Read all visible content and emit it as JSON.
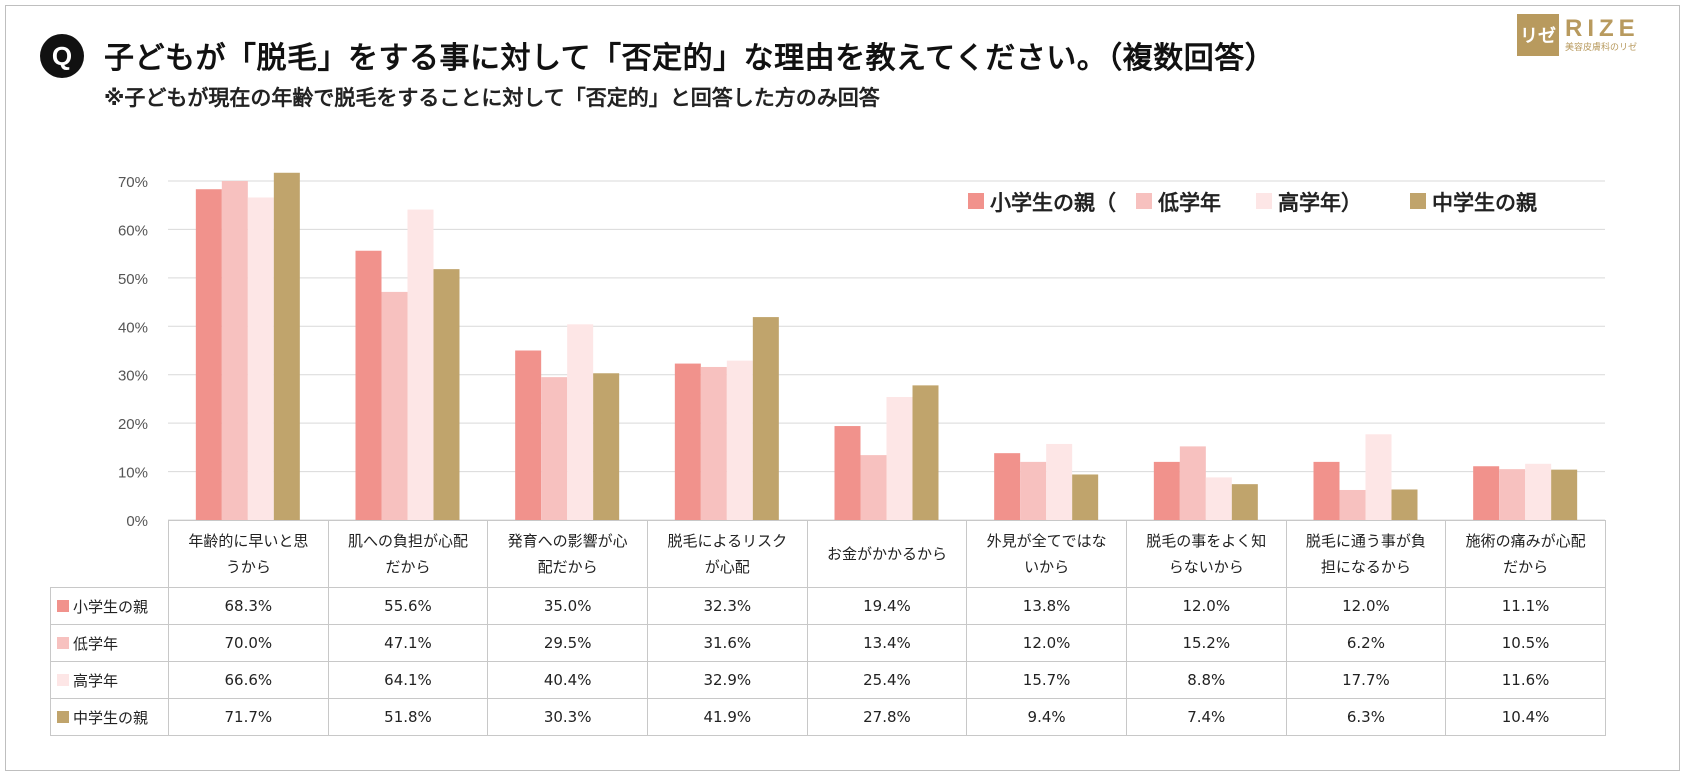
{
  "question_badge": "Q",
  "title": "子どもが「脱毛」をする事に対して「否定的」な理由を教えてください。（複数回答）",
  "subtitle": "※子どもが現在の年齢で脱毛をすることに対して「否定的」と回答した方のみ回答",
  "logo": {
    "mark": "リゼ",
    "name": "RIZE",
    "tagline": "美容皮膚科のリゼ"
  },
  "colors": {
    "s1": "#f1928c",
    "s2": "#f7c1bf",
    "s3": "#fde6e6",
    "s4": "#c0a46c",
    "grid": "#d9d9d9",
    "axis_text": "#555555"
  },
  "legend": {
    "s1": "小学生の親（",
    "s2": "低学年",
    "s3": "高学年）",
    "s4": "中学生の親"
  },
  "chart_data": {
    "type": "bar",
    "title": "子どもが「脱毛」をする事に対して「否定的」な理由を教えてください。（複数回答）",
    "ylabel": "",
    "xlabel": "",
    "ylim": [
      0,
      70
    ],
    "yticks": [
      "0%",
      "10%",
      "20%",
      "30%",
      "40%",
      "50%",
      "60%",
      "70%"
    ],
    "categories": [
      [
        "年齢的に早いと思",
        "うから"
      ],
      [
        "肌への負担が心配",
        "だから"
      ],
      [
        "発育への影響が心",
        "配だから"
      ],
      [
        "脱毛によるリスク",
        "が心配"
      ],
      [
        "お金がかかるから"
      ],
      [
        "外見が全てではな",
        "いから"
      ],
      [
        "脱毛の事をよく知",
        "らないから"
      ],
      [
        "脱毛に通う事が負",
        "担になるから"
      ],
      [
        "施術の痛みが心配",
        "だから"
      ]
    ],
    "series": [
      {
        "name": "小学生の親",
        "values": [
          68.3,
          55.6,
          35.0,
          32.3,
          19.4,
          13.8,
          12.0,
          12.0,
          11.1
        ],
        "labels": [
          "68.3%",
          "55.6%",
          "35.0%",
          "32.3%",
          "19.4%",
          "13.8%",
          "12.0%",
          "12.0%",
          "11.1%"
        ]
      },
      {
        "name": "低学年",
        "values": [
          70.0,
          47.1,
          29.5,
          31.6,
          13.4,
          12.0,
          15.2,
          6.2,
          10.5
        ],
        "labels": [
          "70.0%",
          "47.1%",
          "29.5%",
          "31.6%",
          "13.4%",
          "12.0%",
          "15.2%",
          "6.2%",
          "10.5%"
        ]
      },
      {
        "name": "高学年",
        "values": [
          66.6,
          64.1,
          40.4,
          32.9,
          25.4,
          15.7,
          8.8,
          17.7,
          11.6
        ],
        "labels": [
          "66.6%",
          "64.1%",
          "40.4%",
          "32.9%",
          "25.4%",
          "15.7%",
          "8.8%",
          "17.7%",
          "11.6%"
        ]
      },
      {
        "name": "中学生の親",
        "values": [
          71.7,
          51.8,
          30.3,
          41.9,
          27.8,
          9.4,
          7.4,
          6.3,
          10.4
        ],
        "labels": [
          "71.7%",
          "51.8%",
          "30.3%",
          "41.9%",
          "27.8%",
          "9.4%",
          "7.4%",
          "6.3%",
          "10.4%"
        ]
      }
    ]
  }
}
